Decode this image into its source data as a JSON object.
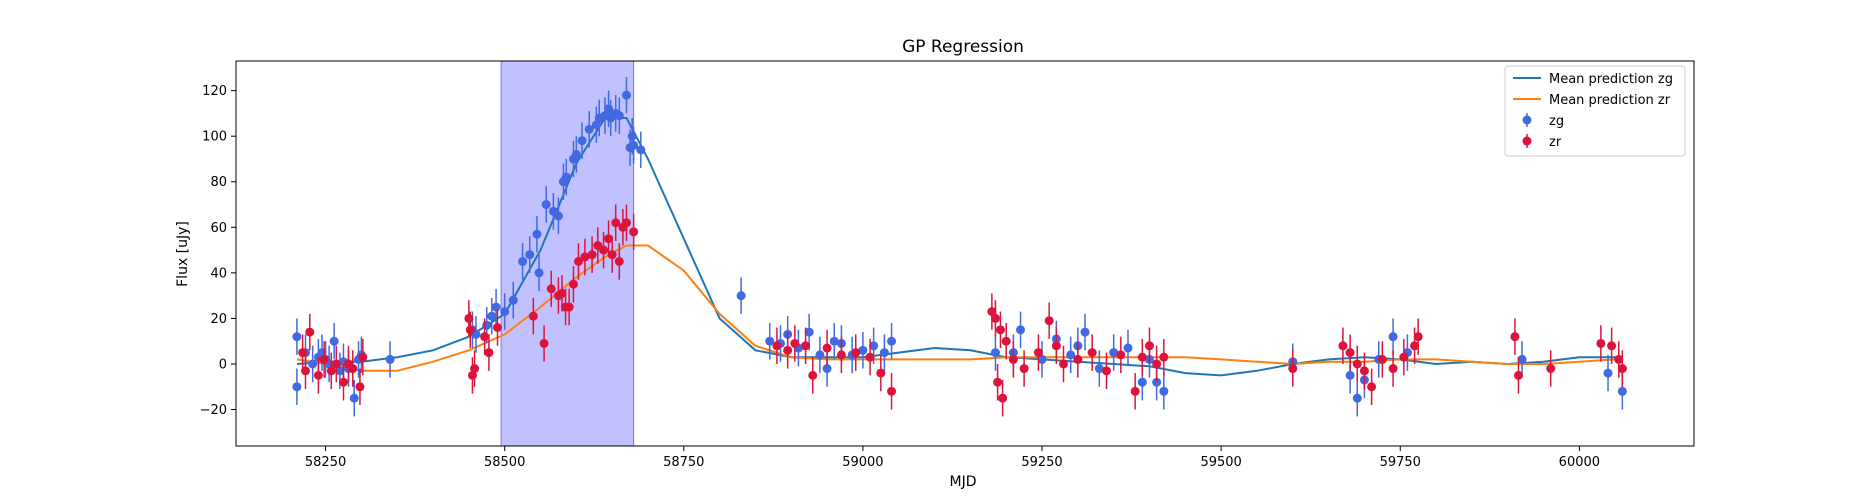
{
  "chart_data": {
    "type": "scatter",
    "title": "GP Regression",
    "xlabel": "MJD",
    "ylabel": "Flux [uJy]",
    "xlim": [
      58125,
      60160
    ],
    "ylim": [
      -36,
      133
    ],
    "xticks": [
      58250,
      58500,
      58750,
      59000,
      59250,
      59500,
      59750,
      60000
    ],
    "yticks": [
      -20,
      0,
      20,
      40,
      60,
      80,
      100,
      120
    ],
    "grid": false,
    "legend_position": "top-right",
    "highlight_span": {
      "x_start": 58495,
      "x_end": 58680,
      "color": "#a6a6ff"
    },
    "series": [
      {
        "name": "Mean prediction zg",
        "kind": "line",
        "color": "#1f77b4",
        "x": [
          58210,
          58250,
          58300,
          58350,
          58400,
          58450,
          58500,
          58550,
          58600,
          58640,
          58670,
          58700,
          58750,
          58800,
          58850,
          58900,
          58950,
          59000,
          59050,
          59100,
          59150,
          59200,
          59250,
          59300,
          59350,
          59400,
          59450,
          59500,
          59550,
          59600,
          59650,
          59700,
          59750,
          59800,
          59850,
          59900,
          59950,
          60000,
          60050,
          60060
        ],
        "y": [
          0,
          1,
          1,
          3,
          6,
          12,
          22,
          50,
          88,
          108,
          108,
          90,
          55,
          20,
          6,
          3,
          3,
          3,
          5,
          7,
          6,
          3,
          2,
          1,
          0,
          -1,
          -4,
          -5,
          -3,
          0,
          2,
          3,
          2,
          0,
          1,
          0,
          1,
          3,
          3,
          3
        ]
      },
      {
        "name": "Mean prediction zr",
        "kind": "line",
        "color": "#ff7f0e",
        "x": [
          58210,
          58250,
          58300,
          58350,
          58400,
          58450,
          58500,
          58550,
          58600,
          58640,
          58670,
          58700,
          58750,
          58800,
          58850,
          58900,
          58950,
          59000,
          59050,
          59100,
          59150,
          59200,
          59250,
          59300,
          59350,
          59400,
          59450,
          59500,
          59550,
          59600,
          59650,
          59700,
          59750,
          59800,
          59850,
          59900,
          59950,
          60000,
          60050,
          60060
        ],
        "y": [
          2,
          0,
          -3,
          -3,
          1,
          6,
          13,
          25,
          38,
          47,
          52,
          52,
          41,
          22,
          8,
          3,
          2,
          2,
          2,
          2,
          2,
          3,
          3,
          3,
          3,
          3,
          3,
          2,
          1,
          0,
          1,
          1,
          2,
          2,
          1,
          0,
          0,
          1,
          2,
          2
        ]
      },
      {
        "name": "zg",
        "kind": "errorbar",
        "color": "#4169e1",
        "x": [
          58210,
          58210,
          58222,
          58232,
          58240,
          58245,
          58250,
          58255,
          58262,
          58270,
          58275,
          58282,
          58290,
          58296,
          58300,
          58340,
          58455,
          58460,
          58475,
          58482,
          58488,
          58500,
          58512,
          58525,
          58535,
          58545,
          58548,
          58558,
          58568,
          58575,
          58582,
          58586,
          58596,
          58600,
          58608,
          58618,
          58628,
          58632,
          58640,
          58645,
          58648,
          58655,
          58660,
          58670,
          58675,
          58678,
          58680,
          58690,
          58830,
          58870,
          58885,
          58895,
          58910,
          58925,
          58940,
          58950,
          58960,
          58970,
          58985,
          59000,
          59015,
          59030,
          59040,
          59185,
          59210,
          59220,
          59250,
          59270,
          59290,
          59300,
          59310,
          59330,
          59350,
          59370,
          59390,
          59400,
          59410,
          59420,
          59600,
          59680,
          59690,
          59700,
          59720,
          59740,
          59760,
          59920,
          60040,
          60060
        ],
        "y": [
          -10,
          12,
          5,
          0,
          3,
          5,
          2,
          0,
          10,
          -3,
          1,
          -2,
          -15,
          2,
          4,
          2,
          15,
          13,
          17,
          21,
          25,
          23,
          28,
          45,
          48,
          57,
          40,
          70,
          67,
          65,
          80,
          82,
          90,
          92,
          98,
          103,
          105,
          108,
          109,
          112,
          108,
          110,
          109,
          118,
          95,
          100,
          96,
          94,
          30,
          10,
          9,
          13,
          7,
          14,
          4,
          -2,
          10,
          9,
          4,
          6,
          8,
          5,
          10,
          5,
          5,
          15,
          2,
          11,
          4,
          8,
          14,
          -2,
          5,
          7,
          -8,
          2,
          -8,
          -12,
          1,
          -5,
          -15,
          -7,
          2,
          12,
          5,
          2,
          -4,
          -12
        ]
      },
      {
        "name": "zr",
        "kind": "errorbar",
        "color": "#dc143c",
        "x": [
          58218,
          58222,
          58228,
          58240,
          58248,
          58258,
          58265,
          58275,
          58282,
          58288,
          58298,
          58302,
          58450,
          58452,
          58455,
          58458,
          58472,
          58478,
          58490,
          58540,
          58555,
          58565,
          58575,
          58580,
          58585,
          58590,
          58596,
          58603,
          58612,
          58622,
          58630,
          58638,
          58645,
          58650,
          58655,
          58660,
          58665,
          58670,
          58680,
          58880,
          58895,
          58905,
          58920,
          58930,
          58950,
          58970,
          58990,
          59010,
          59025,
          59040,
          59180,
          59185,
          59188,
          59192,
          59195,
          59200,
          59210,
          59225,
          59245,
          59260,
          59270,
          59280,
          59300,
          59320,
          59340,
          59360,
          59380,
          59390,
          59400,
          59410,
          59420,
          59600,
          59670,
          59680,
          59690,
          59700,
          59710,
          59725,
          59740,
          59755,
          59770,
          59775,
          59910,
          59915,
          59960,
          60030,
          60045,
          60055,
          60060
        ],
        "y": [
          5,
          -3,
          14,
          -5,
          2,
          -3,
          0,
          -8,
          0,
          -2,
          -10,
          3,
          20,
          15,
          -5,
          -2,
          12,
          5,
          16,
          21,
          9,
          33,
          30,
          31,
          25,
          25,
          35,
          45,
          47,
          48,
          52,
          50,
          55,
          48,
          62,
          45,
          60,
          62,
          58,
          8,
          6,
          9,
          8,
          -5,
          7,
          4,
          5,
          3,
          -4,
          -12,
          23,
          20,
          -8,
          15,
          -15,
          10,
          2,
          -2,
          5,
          19,
          8,
          0,
          2,
          5,
          -3,
          4,
          -12,
          3,
          8,
          0,
          3,
          -2,
          8,
          5,
          0,
          -3,
          -10,
          2,
          -2,
          3,
          8,
          12,
          12,
          -5,
          -2,
          9,
          8,
          2,
          -2
        ]
      }
    ]
  }
}
